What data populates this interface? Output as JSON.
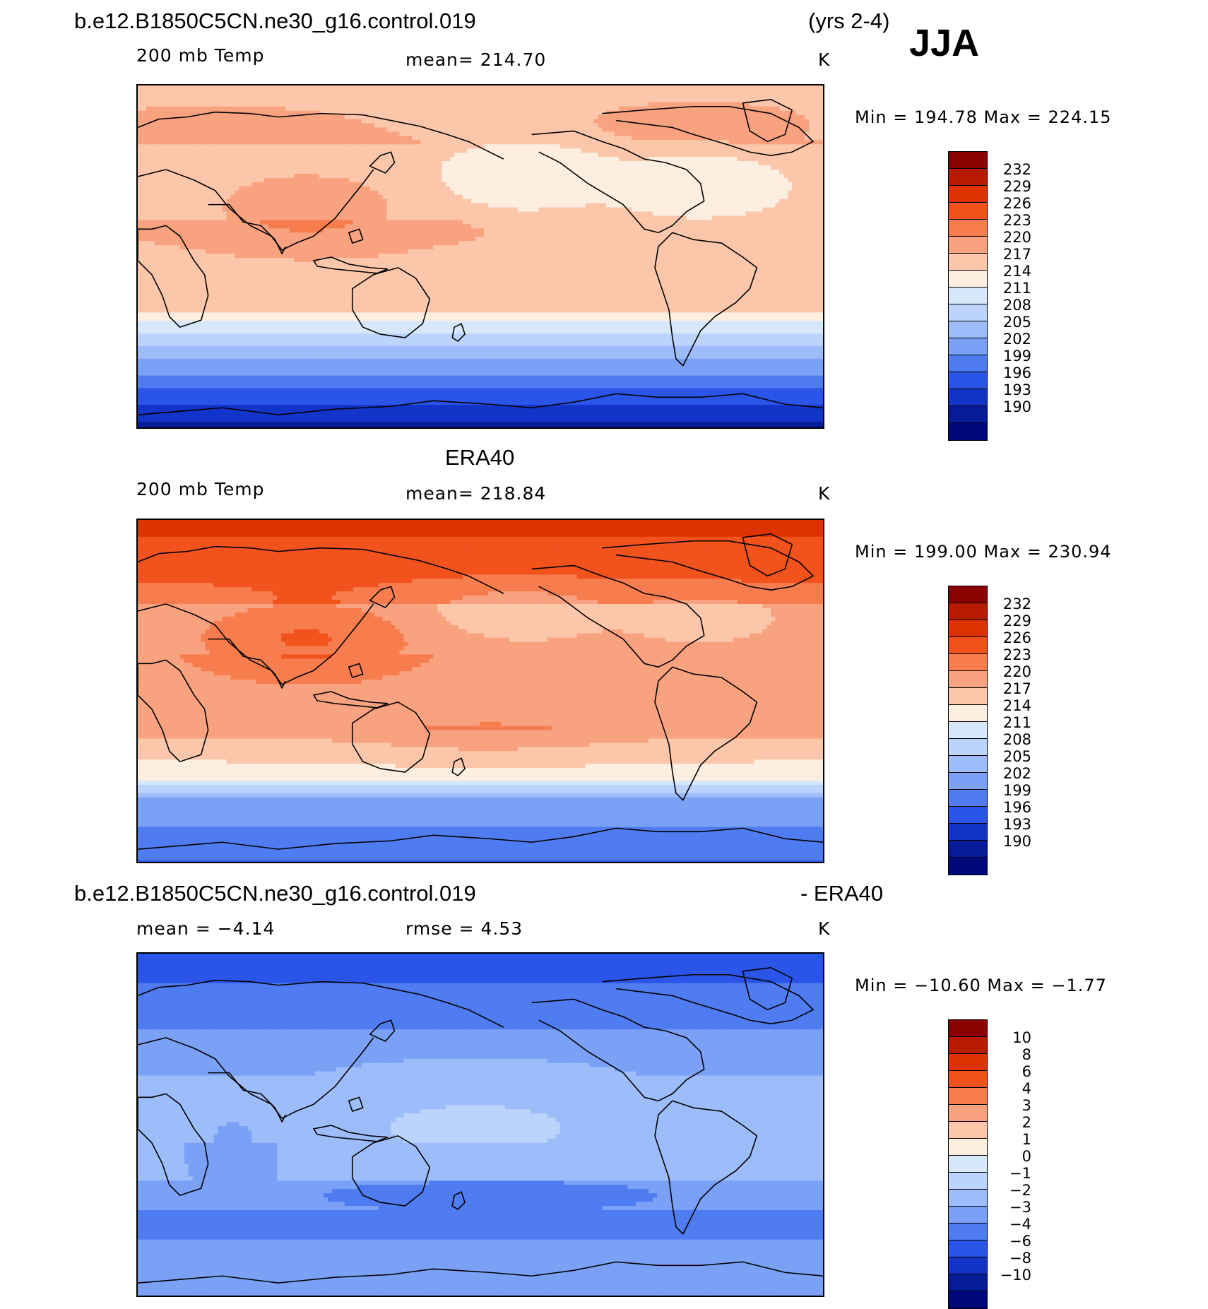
{
  "header": {
    "case_name": "b.e12.B1850C5CN.ne30_g16.control.019",
    "years": "(yrs 2-4)",
    "season": "JJA"
  },
  "panels": [
    {
      "title": "",
      "variable": "200 mb Temp",
      "stat": "mean=  214.70",
      "unit": "K",
      "minmax": "Min  =  194.78  Max  =  224.15",
      "colorbar_labels": [
        "232",
        "229",
        "226",
        "223",
        "220",
        "217",
        "214",
        "211",
        "208",
        "205",
        "202",
        "199",
        "196",
        "193",
        "190"
      ]
    },
    {
      "title": "ERA40",
      "variable": "200 mb Temp",
      "stat": "mean=  218.84",
      "unit": "K",
      "minmax": "Min  =  199.00  Max  =  230.94",
      "colorbar_labels": [
        "232",
        "229",
        "226",
        "223",
        "220",
        "217",
        "214",
        "211",
        "208",
        "205",
        "202",
        "199",
        "196",
        "193",
        "190"
      ]
    },
    {
      "title_left": "b.e12.B1850C5CN.ne30_g16.control.019",
      "title_right": "- ERA40",
      "variable": "mean  =    −4.14",
      "stat": "rmse  =     4.53",
      "unit": "K",
      "minmax": "Min  = −10.60  Max  =   −1.77",
      "colorbar_labels": [
        "10",
        "8",
        "6",
        "4",
        "3",
        "2",
        "1",
        "0",
        "−1",
        "−2",
        "−3",
        "−4",
        "−6",
        "−8",
        "−10"
      ]
    }
  ],
  "colorbar_colors": [
    "#8b0000",
    "#b81a00",
    "#dd3300",
    "#f2531d",
    "#f77d4f",
    "#f9a27f",
    "#fcc6ab",
    "#feeedf",
    "#d8e8fb",
    "#bcd4fb",
    "#9dbcfa",
    "#7aa1f6",
    "#4f7cf0",
    "#2a55e8",
    "#1234c8",
    "#061b98",
    "#00087a"
  ],
  "colormap_ranges": {
    "temperature": [
      187,
      235
    ],
    "difference": [
      -12,
      12
    ]
  }
}
